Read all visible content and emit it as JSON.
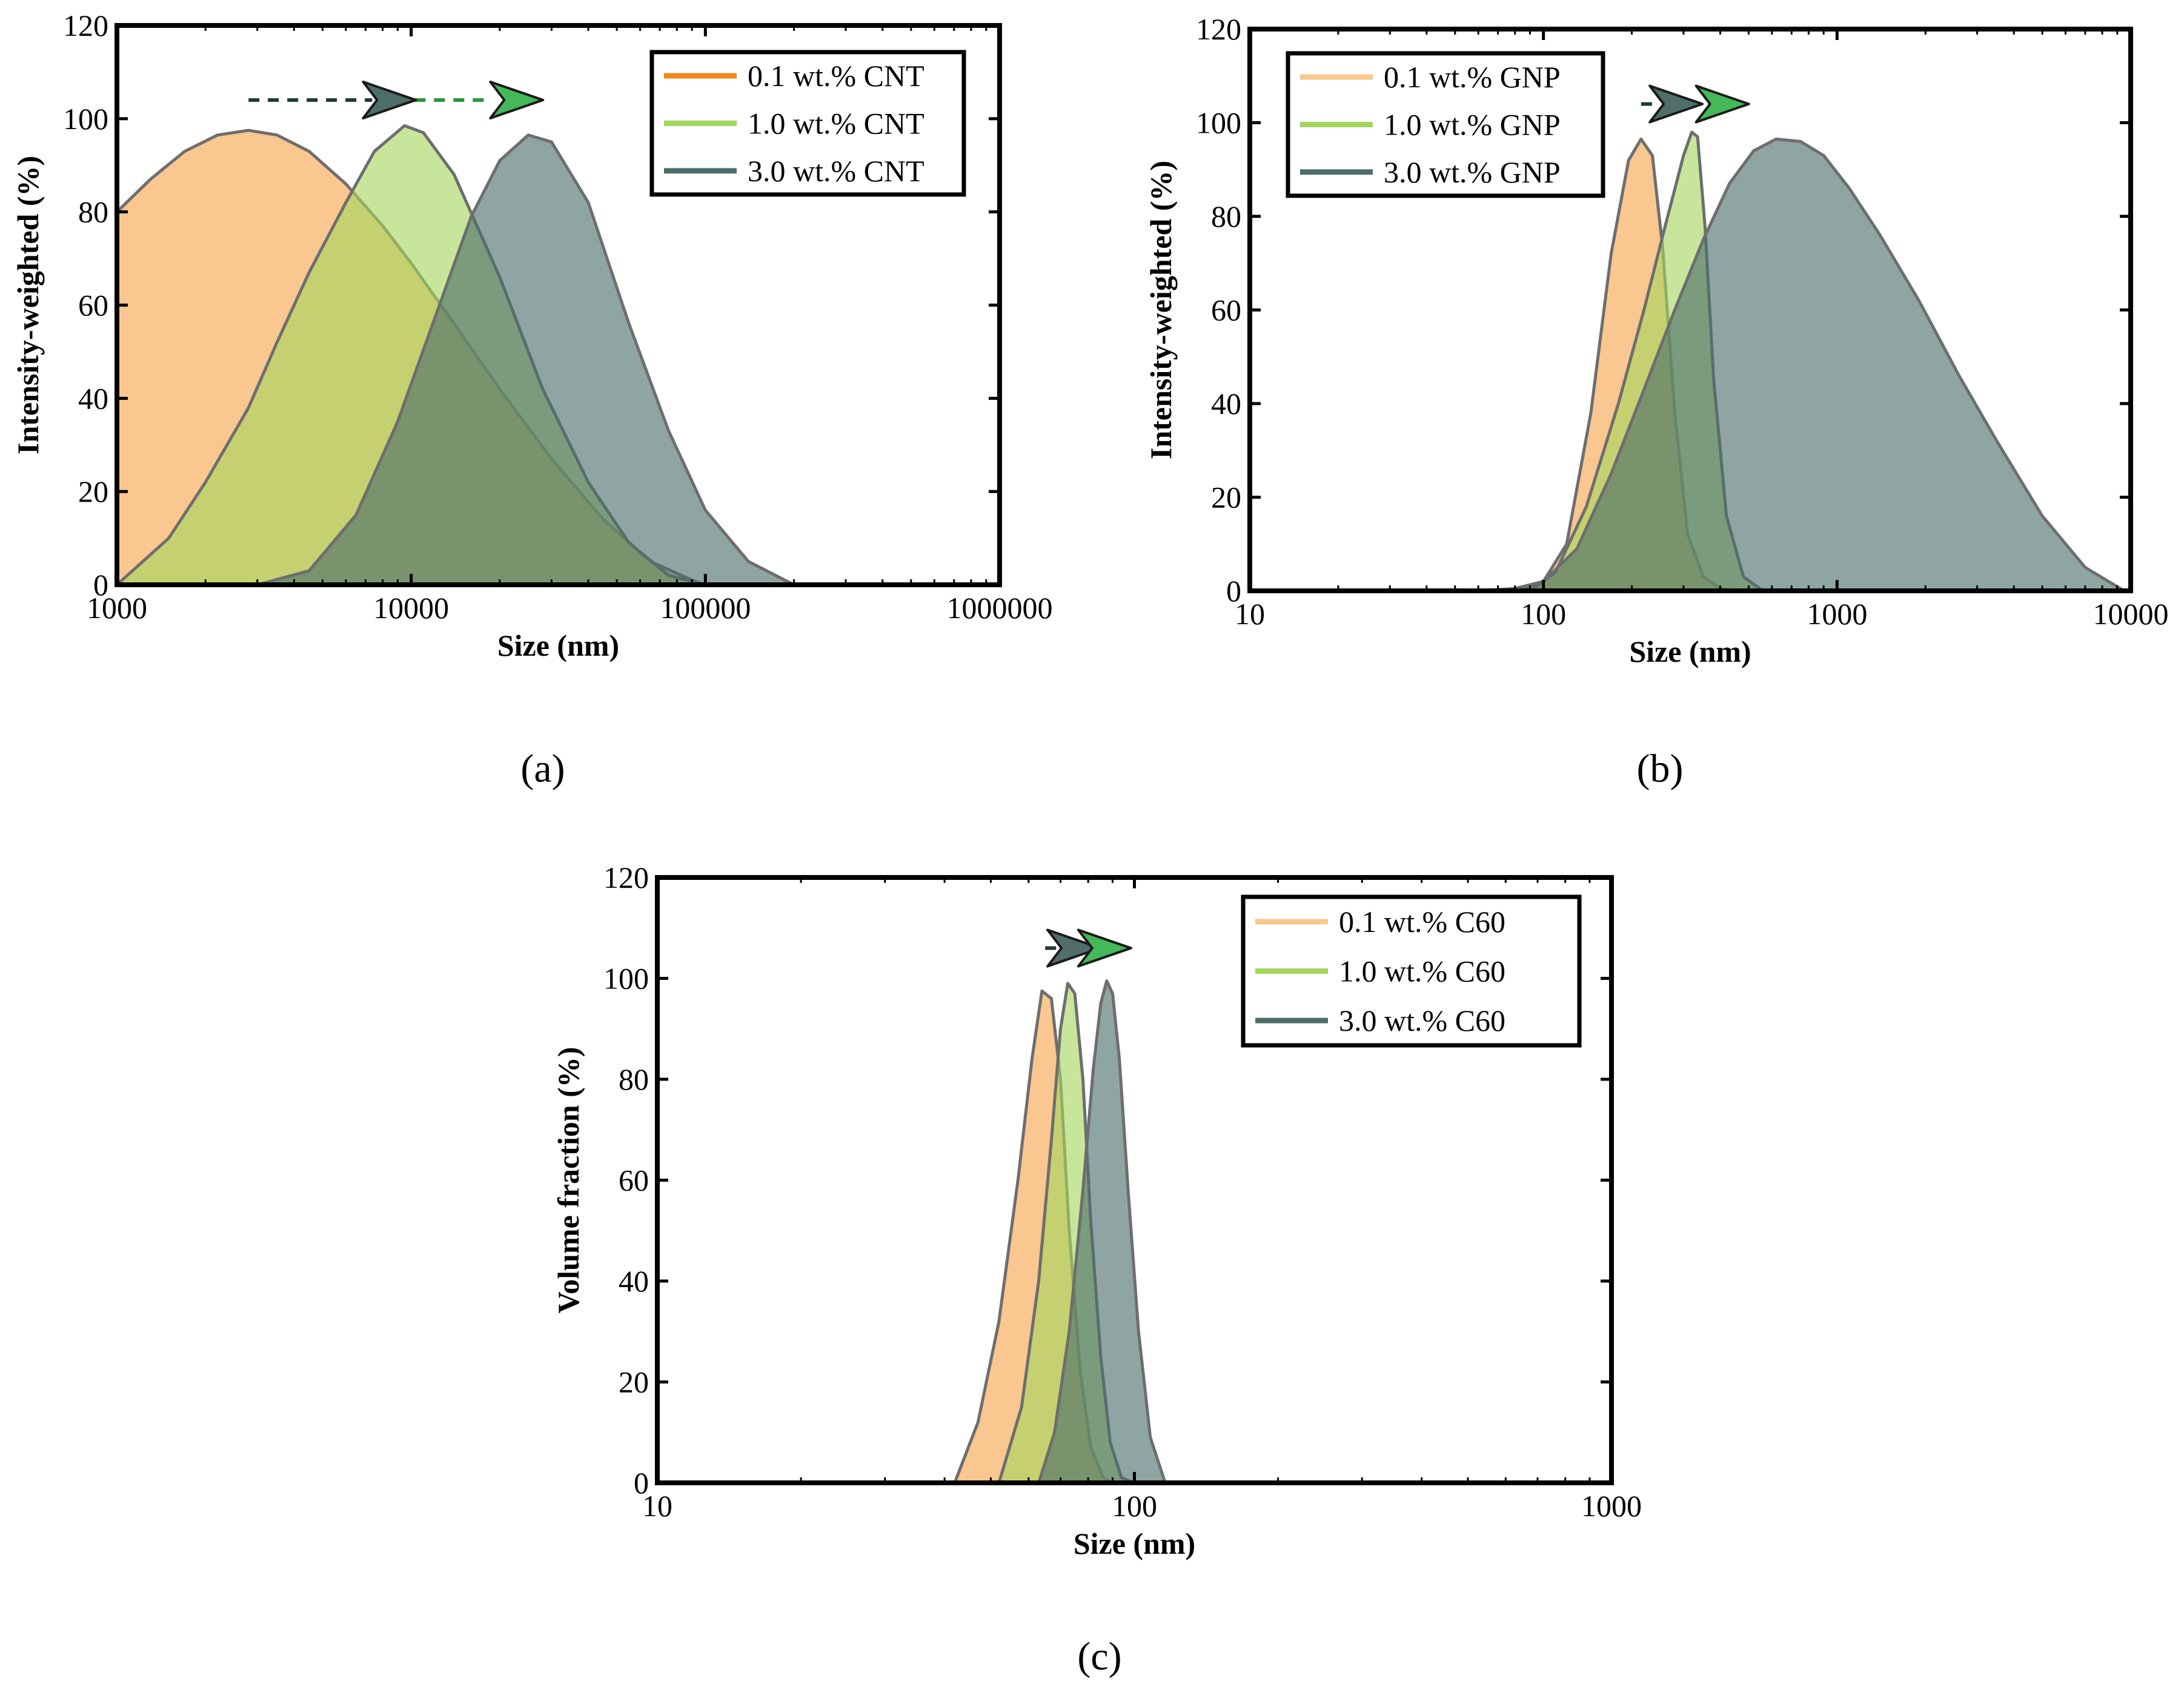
{
  "colors": {
    "orange": "#f5a54a",
    "green": "#a4d65e",
    "teal": "#4b6e6b",
    "orange_line": "#f08a1a",
    "edge": "#6e6e6e"
  },
  "chart_data": [
    {
      "id": "a",
      "type": "area",
      "panel_label": "(a)",
      "xscale": "log",
      "xlim": [
        1000,
        1000000
      ],
      "ylim": [
        0,
        120
      ],
      "xticks": [
        1000,
        10000,
        100000,
        1000000
      ],
      "xtick_labels": [
        "1000",
        "10000",
        "100000",
        "1000000"
      ],
      "yticks": [
        0,
        20,
        40,
        60,
        80,
        100,
        120
      ],
      "ytick_labels": [
        "0",
        "20",
        "40",
        "60",
        "80",
        "100",
        "120"
      ],
      "xlabel": "Size (nm)",
      "ylabel": "Intensity-weighted (%)",
      "legend_position": "top-right",
      "arrow": {
        "start": 2800,
        "mid": 8500,
        "end": 23000,
        "y": 104
      },
      "series": [
        {
          "name": "0.1 wt.% CNT",
          "color": "#f5a54a",
          "legend_color": "#f08a1a",
          "x": [
            1000,
            1300,
            1700,
            2200,
            2800,
            3500,
            4500,
            6000,
            8000,
            10000,
            14000,
            20000,
            30000,
            45000,
            65000,
            90000,
            100000
          ],
          "y": [
            80,
            87,
            93,
            96.5,
            97.5,
            96.5,
            93,
            86,
            77,
            69,
            56,
            42,
            27,
            14,
            5,
            1,
            0
          ]
        },
        {
          "name": "1.0 wt.% CNT",
          "color": "#a4d65e",
          "legend_color": "#a4d65e",
          "x": [
            1000,
            1500,
            2000,
            2800,
            3500,
            4500,
            6000,
            7500,
            9500,
            11000,
            14000,
            20000,
            28000,
            40000,
            55000,
            75000,
            100000
          ],
          "y": [
            0,
            10,
            22,
            38,
            52,
            67,
            82,
            93,
            98.5,
            97,
            88,
            66,
            42,
            22,
            9,
            2,
            0
          ]
        },
        {
          "name": "3.0 wt.% CNT",
          "color": "#4b6e6b",
          "legend_color": "#4b6e6b",
          "x": [
            1000,
            3000,
            4500,
            6500,
            9000,
            12000,
            16000,
            20000,
            25000,
            30000,
            40000,
            55000,
            75000,
            100000,
            140000,
            200000
          ],
          "y": [
            0,
            0,
            3,
            15,
            35,
            57,
            79,
            91,
            96.5,
            95,
            82,
            56,
            33,
            16,
            5,
            0
          ]
        }
      ]
    },
    {
      "id": "b",
      "type": "area",
      "panel_label": "(b)",
      "xscale": "log",
      "xlim": [
        10,
        10000
      ],
      "ylim": [
        0,
        120
      ],
      "xticks": [
        10,
        100,
        1000,
        10000
      ],
      "xtick_labels": [
        "10",
        "100",
        "1000",
        "10000"
      ],
      "yticks": [
        0,
        20,
        40,
        60,
        80,
        100,
        120
      ],
      "ytick_labels": [
        "0",
        "20",
        "40",
        "60",
        "80",
        "100",
        "120"
      ],
      "xlabel": "Size (nm)",
      "ylabel": "Intensity-weighted (%)",
      "legend_position": "top-left",
      "arrow": {
        "start": 215,
        "mid": 285,
        "end": 410,
        "y": 104
      },
      "series": [
        {
          "name": "0.1 wt.% GNP",
          "color": "#f5a54a",
          "legend_color": "#f9c88e",
          "x": [
            80,
            100,
            120,
            145,
            170,
            195,
            215,
            235,
            255,
            280,
            310,
            350,
            400,
            450
          ],
          "y": [
            0,
            2,
            10,
            38,
            72,
            92,
            96.5,
            93,
            73,
            38,
            12,
            3,
            0.5,
            0
          ]
        },
        {
          "name": "1.0 wt.% GNP",
          "color": "#a4d65e",
          "legend_color": "#a4d65e",
          "x": [
            90,
            110,
            140,
            180,
            220,
            260,
            300,
            320,
            335,
            355,
            380,
            420,
            480,
            560
          ],
          "y": [
            0,
            4,
            18,
            40,
            60,
            78,
            93,
            98,
            97,
            78,
            45,
            16,
            3,
            0
          ]
        },
        {
          "name": "3.0 wt.% GNP",
          "color": "#4b6e6b",
          "legend_color": "#4b6e6b",
          "x": [
            60,
            80,
            100,
            130,
            170,
            220,
            280,
            350,
            430,
            520,
            620,
            750,
            900,
            1100,
            1400,
            1900,
            2600,
            3500,
            5000,
            7000,
            9500
          ],
          "y": [
            0,
            0.5,
            2,
            9,
            25,
            43,
            60,
            75,
            87,
            94,
            96.5,
            96,
            93,
            86,
            76,
            62,
            46,
            32,
            16,
            5,
            0
          ]
        }
      ]
    },
    {
      "id": "c",
      "type": "area",
      "panel_label": "(c)",
      "xscale": "log",
      "xlim": [
        10,
        1000
      ],
      "ylim": [
        0,
        120
      ],
      "xticks": [
        10,
        100,
        1000
      ],
      "xtick_labels": [
        "10",
        "100",
        "1000"
      ],
      "yticks": [
        0,
        20,
        40,
        60,
        80,
        100,
        120
      ],
      "ytick_labels": [
        "0",
        "20",
        "40",
        "60",
        "80",
        "100",
        "120"
      ],
      "xlabel": "Size (nm)",
      "ylabel": "Volume fraction (%)",
      "legend_position": "top-right",
      "arrow": {
        "start": 65,
        "mid": 75,
        "end": 87,
        "y": 106
      },
      "series": [
        {
          "name": "0.1 wt.% C60",
          "color": "#f5a54a",
          "legend_color": "#f9c88e",
          "x": [
            42,
            47,
            52,
            57,
            61,
            64,
            67,
            70,
            73,
            77,
            81,
            86,
            90
          ],
          "y": [
            0,
            12,
            32,
            60,
            84,
            97.5,
            96,
            80,
            50,
            22,
            7,
            1,
            0
          ]
        },
        {
          "name": "1.0 wt.% C60",
          "color": "#a4d65e",
          "legend_color": "#a4d65e",
          "x": [
            52,
            58,
            63,
            67,
            70,
            72.5,
            75,
            78,
            81,
            85,
            89,
            94,
            100
          ],
          "y": [
            0,
            15,
            40,
            68,
            90,
            99,
            97,
            80,
            52,
            25,
            8,
            1,
            0
          ]
        },
        {
          "name": "3.0 wt.% C60",
          "color": "#4b6e6b",
          "legend_color": "#4b6e6b",
          "x": [
            63,
            68,
            73,
            78,
            82,
            85,
            87.5,
            90,
            93,
            97,
            102,
            108,
            116
          ],
          "y": [
            0,
            10,
            30,
            58,
            82,
            95,
            99.5,
            97,
            84,
            58,
            30,
            9,
            0
          ]
        }
      ]
    }
  ]
}
